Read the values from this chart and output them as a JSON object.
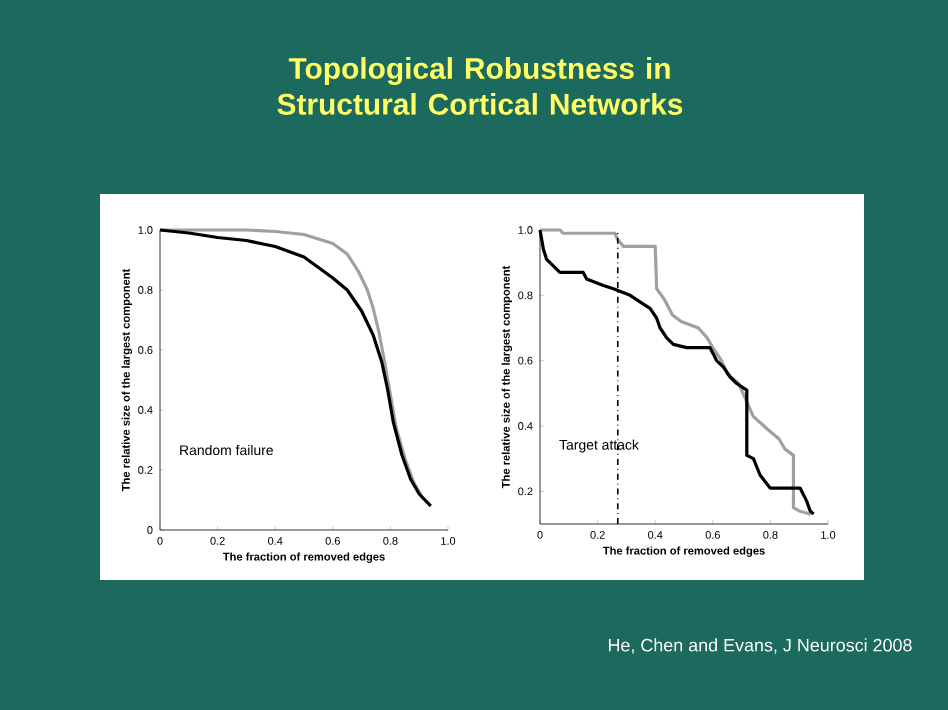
{
  "chart_data": [
    {
      "type": "line",
      "title": "Topological Robustness in Structural Cortical Networks",
      "xlabel": "The fraction of removed edges",
      "ylabel": "The relative size of the largest component",
      "xlim": [
        0,
        1
      ],
      "ylim": [
        0,
        1
      ],
      "xticks": [
        0,
        0.2,
        0.4,
        0.6,
        0.8,
        {
          "value": 1,
          "label": "1.0"
        }
      ],
      "yticks": [
        0,
        0.2,
        0.4,
        0.6,
        0.8,
        {
          "value": 1,
          "label": "1.0"
        }
      ],
      "annotations": [
        "Random failure"
      ],
      "series": [
        {
          "color": "#a0a0a0",
          "x": [
            0,
            0.3,
            0.4,
            0.5,
            0.55,
            0.6,
            0.65,
            0.69,
            0.72,
            0.74,
            0.76,
            0.78,
            0.8,
            0.82,
            0.85,
            0.88,
            0.91,
            0.94
          ],
          "values": [
            1,
            1,
            0.995,
            0.985,
            0.97,
            0.955,
            0.92,
            0.86,
            0.8,
            0.74,
            0.66,
            0.56,
            0.45,
            0.34,
            0.24,
            0.16,
            0.11,
            0.08
          ]
        },
        {
          "color": "#000000",
          "x": [
            0,
            0.1,
            0.2,
            0.3,
            0.4,
            0.5,
            0.6,
            0.65,
            0.7,
            0.74,
            0.77,
            0.79,
            0.81,
            0.84,
            0.87,
            0.9,
            0.94
          ],
          "values": [
            1,
            0.99,
            0.975,
            0.965,
            0.945,
            0.91,
            0.84,
            0.8,
            0.73,
            0.65,
            0.56,
            0.47,
            0.36,
            0.25,
            0.17,
            0.12,
            0.08
          ]
        }
      ]
    },
    {
      "type": "line",
      "xlabel": "The fraction of removed edges",
      "ylabel": "The relative size of the largest component",
      "xlim": [
        0,
        1
      ],
      "ylim": [
        0.1,
        1
      ],
      "xticks": [
        0,
        0.2,
        0.4,
        0.6,
        0.8,
        {
          "value": 1,
          "label": "1.0"
        }
      ],
      "yticks": [
        0.2,
        0.4,
        0.6,
        0.8,
        {
          "value": 1,
          "label": "1.0"
        }
      ],
      "annotations": [
        "Target attack",
        "He, Chen and Evans, J Neurosci 2008"
      ],
      "ref_lines": [
        {
          "axis": "x",
          "value": 0.27,
          "color": "#000000",
          "line_style": "dashdot"
        }
      ],
      "series": [
        {
          "color": "#a0a0a0",
          "x": [
            0,
            0.07,
            0.08,
            0.26,
            0.27,
            0.29,
            0.4,
            0.405,
            0.43,
            0.46,
            0.49,
            0.55,
            0.58,
            0.6,
            0.63,
            0.65,
            0.69,
            0.74,
            0.79,
            0.83,
            0.85,
            0.88,
            0.88,
            0.9,
            0.94
          ],
          "values": [
            1,
            1,
            0.99,
            0.99,
            0.97,
            0.95,
            0.95,
            0.82,
            0.79,
            0.74,
            0.72,
            0.7,
            0.67,
            0.64,
            0.6,
            0.56,
            0.53,
            0.43,
            0.39,
            0.36,
            0.33,
            0.31,
            0.15,
            0.14,
            0.13
          ]
        },
        {
          "color": "#000000",
          "x": [
            0,
            0.012,
            0.023,
            0.069,
            0.15,
            0.162,
            0.22,
            0.255,
            0.313,
            0.347,
            0.382,
            0.405,
            0.417,
            0.44,
            0.463,
            0.509,
            0.59,
            0.602,
            0.613,
            0.637,
            0.66,
            0.683,
            0.718,
            0.718,
            0.741,
            0.764,
            0.799,
            0.903,
            0.926,
            0.938,
            0.95
          ],
          "values": [
            1,
            0.94,
            0.91,
            0.87,
            0.87,
            0.85,
            0.83,
            0.82,
            0.8,
            0.78,
            0.76,
            0.73,
            0.7,
            0.67,
            0.65,
            0.64,
            0.64,
            0.62,
            0.6,
            0.58,
            0.55,
            0.53,
            0.51,
            0.31,
            0.3,
            0.25,
            0.21,
            0.21,
            0.17,
            0.14,
            0.13
          ]
        }
      ]
    }
  ]
}
